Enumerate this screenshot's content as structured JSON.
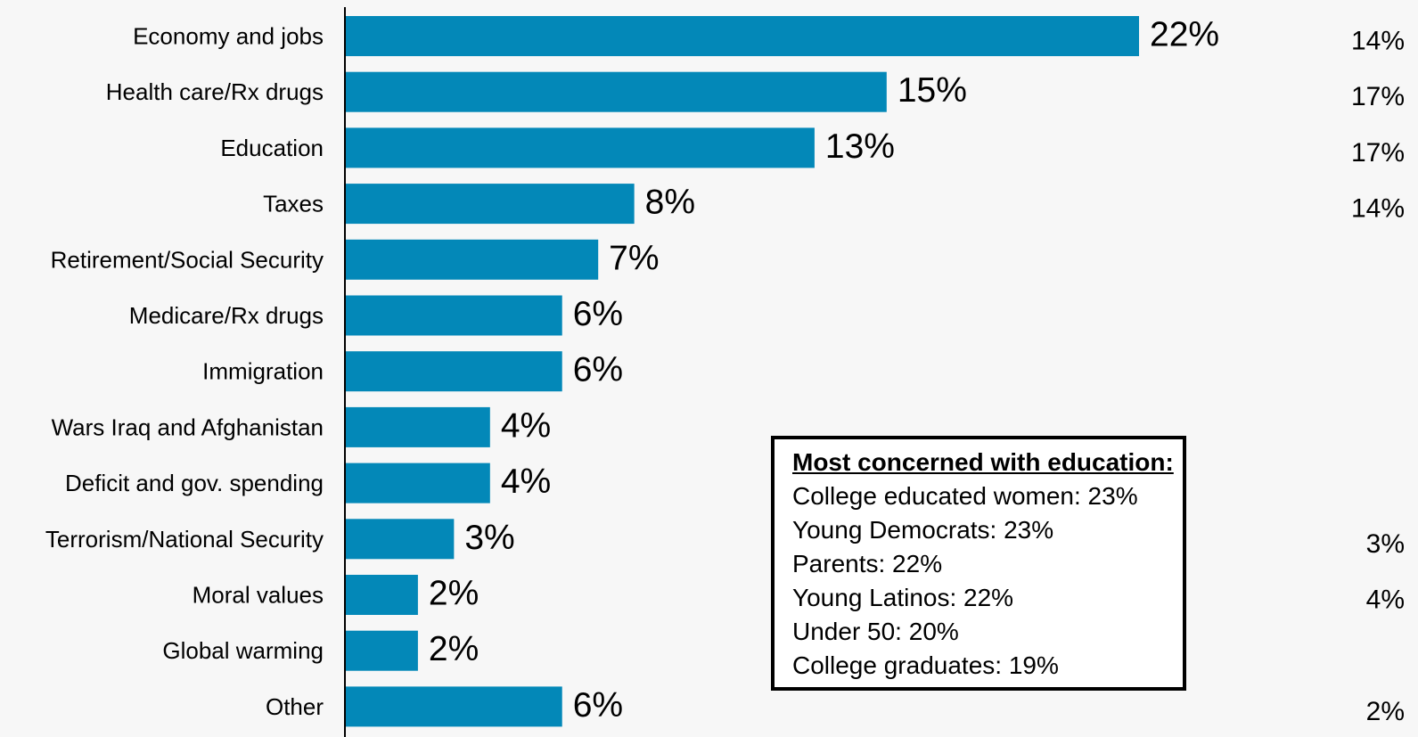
{
  "chart_data": {
    "type": "bar",
    "orientation": "horizontal",
    "categories": [
      "Economy and jobs",
      "Health care/Rx drugs",
      "Education",
      "Taxes",
      "Retirement/Social Security",
      "Medicare/Rx drugs",
      "Immigration",
      "Wars Iraq and Afghanistan",
      "Deficit and gov. spending",
      "Terrorism/National Security",
      "Moral values",
      "Global warming",
      "Other"
    ],
    "values": [
      22,
      15,
      13,
      8,
      7,
      6,
      6,
      4,
      4,
      3,
      2,
      2,
      6
    ],
    "value_labels": [
      "22%",
      "15%",
      "13%",
      "8%",
      "7%",
      "6%",
      "6%",
      "4%",
      "4%",
      "3%",
      "2%",
      "2%",
      "6%"
    ],
    "secondary_labels": [
      "14%",
      "17%",
      "17%",
      "14%",
      "",
      "",
      "",
      "",
      "",
      "3%",
      "4%",
      "",
      "2%"
    ],
    "title": "",
    "xlabel": "",
    "ylabel": "",
    "xlim": [
      0,
      22
    ],
    "grid": false,
    "bar_color": "#0388b8"
  },
  "callout": {
    "title": "Most concerned with education:",
    "lines": [
      "College educated women:  23%",
      "Young Democrats:  23%",
      "Parents:  22%",
      "Young Latinos:  22%",
      "Under 50:  20%",
      "College graduates:  19%"
    ]
  }
}
